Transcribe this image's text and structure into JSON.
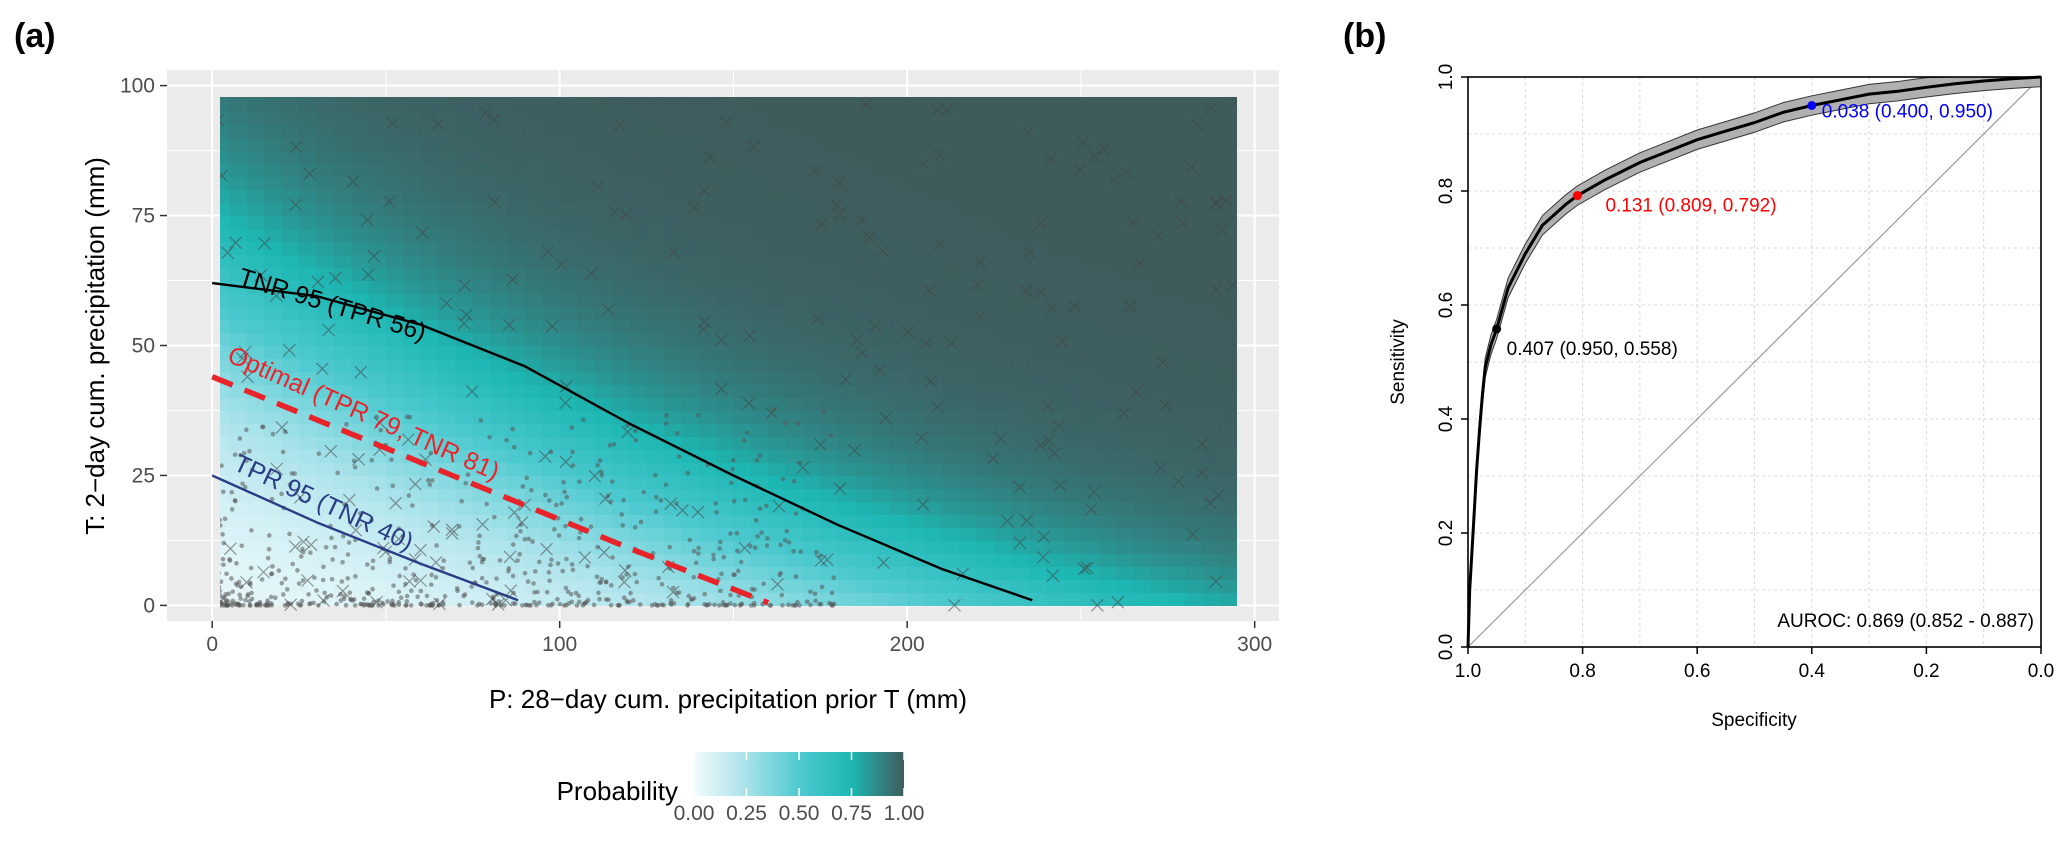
{
  "chart_data": [
    {
      "panel_label": "(a)",
      "type": "heatmap",
      "xlabel": "P: 28−day cum. precipitation prior T (mm)",
      "ylabel": "T: 2−day cum. precipitation (mm)",
      "xlim": [
        -13,
        307
      ],
      "ylim": [
        -3,
        103
      ],
      "data_xlim": [
        0,
        300
      ],
      "data_ylim": [
        0,
        100
      ],
      "xticks": [
        0,
        100,
        200,
        300
      ],
      "xtick_labels": [
        "0",
        "100",
        "200",
        "300"
      ],
      "yticks": [
        0,
        25,
        50,
        75,
        100
      ],
      "ytick_labels": [
        "0",
        "25",
        "50",
        "75",
        "100"
      ],
      "grid": true,
      "colors": {
        "panel_bg": "#ebebeb",
        "grid": "#ffffff",
        "prob_0": "#f2fbfd",
        "prob_025": "#a8e2ea",
        "prob_05": "#4fcad0",
        "prob_075": "#1db7b3",
        "prob_1": "#3f5c5d",
        "tnr95": "#000000",
        "optimal": "#e8242a",
        "tpr95": "#2a3c86",
        "points": "#555555"
      },
      "legend": {
        "title": "Probability",
        "position": "bottom",
        "ticks": [
          0,
          0.25,
          0.5,
          0.75,
          1
        ],
        "tick_labels": [
          "0.00",
          "0.25",
          "0.50",
          "0.75",
          "1.00"
        ]
      },
      "curves": [
        {
          "label": "TNR 95 (TPR 56)",
          "style": "solid",
          "x": [
            0,
            30,
            60,
            90,
            120,
            150,
            180,
            210,
            236
          ],
          "y": [
            62,
            59.5,
            54,
            46,
            35,
            25,
            15.5,
            7,
            1
          ]
        },
        {
          "label": "Optimal (TPR 79, TNR 81)",
          "style": "dashed",
          "x": [
            0,
            40,
            80,
            120,
            160
          ],
          "y": [
            44,
            33,
            22,
            11,
            0.5
          ]
        },
        {
          "label": "TPR 95 (TNR 40)",
          "style": "solid",
          "x": [
            0,
            30,
            60,
            88
          ],
          "y": [
            25,
            16,
            8,
            1
          ]
        }
      ]
    },
    {
      "panel_label": "(b)",
      "type": "line",
      "xlabel": "Specificity",
      "ylabel": "Sensitivity",
      "xlim": [
        1.0,
        0.0
      ],
      "ylim": [
        0.0,
        1.0
      ],
      "xticks": [
        1.0,
        0.8,
        0.6,
        0.4,
        0.2,
        0.0
      ],
      "xtick_labels": [
        "1.0",
        "0.8",
        "0.6",
        "0.4",
        "0.2",
        "0.0"
      ],
      "yticks": [
        0.0,
        0.2,
        0.4,
        0.6,
        0.8,
        1.0
      ],
      "ytick_labels": [
        "0.0",
        "0.2",
        "0.4",
        "0.6",
        "0.8",
        "1.0"
      ],
      "grid": true,
      "colors": {
        "curve": "#000000",
        "band": "#b0b0b0",
        "diagonal": "#999999",
        "grid": "#d9d9d9"
      },
      "roc": {
        "specificity": [
          1.0,
          0.997,
          0.99,
          0.985,
          0.98,
          0.975,
          0.97,
          0.96,
          0.95,
          0.93,
          0.9,
          0.87,
          0.83,
          0.809,
          0.76,
          0.7,
          0.65,
          0.6,
          0.55,
          0.5,
          0.45,
          0.4,
          0.35,
          0.3,
          0.25,
          0.2,
          0.15,
          0.1,
          0.05,
          0.0
        ],
        "sensitivity": [
          0.0,
          0.1,
          0.22,
          0.31,
          0.38,
          0.44,
          0.49,
          0.53,
          0.558,
          0.63,
          0.69,
          0.74,
          0.776,
          0.792,
          0.82,
          0.85,
          0.87,
          0.89,
          0.905,
          0.92,
          0.938,
          0.95,
          0.96,
          0.97,
          0.975,
          0.982,
          0.988,
          0.993,
          0.997,
          1.0
        ],
        "band_halfwidth": 0.017
      },
      "points": [
        {
          "label": "0.038 (0.400, 0.950)",
          "x": 0.4,
          "y": 0.95,
          "color": "#0000ff"
        },
        {
          "label": "0.131 (0.809, 0.792)",
          "x": 0.809,
          "y": 0.792,
          "color": "#ff0000"
        },
        {
          "label": "0.407 (0.950, 0.558)",
          "x": 0.95,
          "y": 0.558,
          "color": "#000000"
        }
      ],
      "auroc_label": "AUROC: 0.869 (0.852 - 0.887)"
    }
  ]
}
